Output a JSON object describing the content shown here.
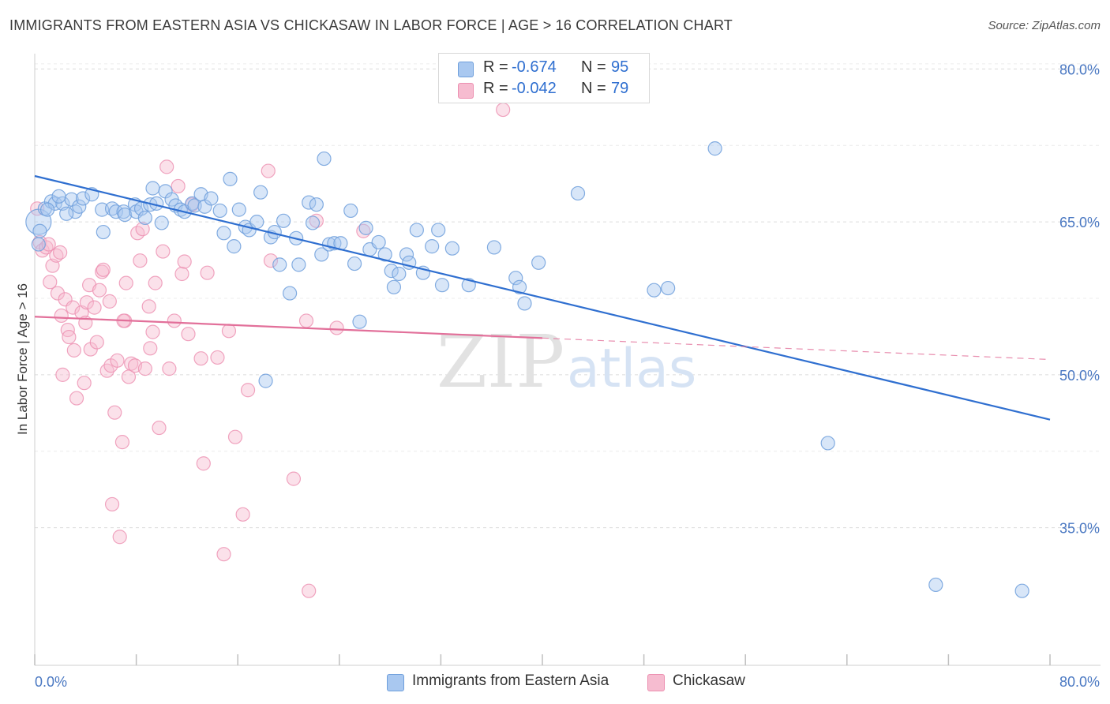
{
  "title": "IMMIGRANTS FROM EASTERN ASIA VS CHICKASAW IN LABOR FORCE | AGE > 16 CORRELATION CHART",
  "source": "Source: ZipAtlas.com",
  "watermark": {
    "zip": "ZIP",
    "atlas": "atlas"
  },
  "colors": {
    "blue_fill": "#a9c8f0",
    "blue_stroke": "#6f9fdc",
    "blue_line": "#2f6fd0",
    "pink_fill": "#f6bcd0",
    "pink_stroke": "#ec8fb0",
    "pink_line": "#e2709a",
    "grid": "#dcdcdc",
    "tick_text": "#4a78c2"
  },
  "legend_top": [
    {
      "r_label": "R =",
      "r_value": "-0.674",
      "n_label": "N =",
      "n_value": "95"
    },
    {
      "r_label": "R =",
      "r_value": "-0.042",
      "n_label": "N =",
      "n_value": "79"
    }
  ],
  "legend_bottom": [
    {
      "label": "Immigrants from Eastern Asia"
    },
    {
      "label": "Chickasaw"
    }
  ],
  "chart_data": {
    "type": "scatter",
    "ylabel": "In Labor Force | Age > 16",
    "xlim": [
      0,
      80
    ],
    "ylim": [
      21.5,
      81.5
    ],
    "x_tick_labels": [
      "0.0%",
      "80.0%"
    ],
    "y_ticks": [
      35,
      50,
      65,
      80
    ],
    "y_tick_labels": [
      "35.0%",
      "50.0%",
      "65.0%",
      "80.0%"
    ],
    "grid": true,
    "legend_position": "top-center",
    "series": [
      {
        "name": "Immigrants from Eastern Asia",
        "trend": {
          "x0": 0,
          "y0": 69.5,
          "x1": 80,
          "y1": 45.6
        },
        "points": [
          [
            0.3,
            65.0
          ],
          [
            0.3,
            62.8
          ],
          [
            0.8,
            66.3
          ],
          [
            1.3,
            67.0
          ],
          [
            1.6,
            66.8
          ],
          [
            2.2,
            66.8
          ],
          [
            2.9,
            67.2
          ],
          [
            3.2,
            66.0
          ],
          [
            3.5,
            66.5
          ],
          [
            3.8,
            67.3
          ],
          [
            4.5,
            67.7
          ],
          [
            5.3,
            66.2
          ],
          [
            5.4,
            64.0
          ],
          [
            6.1,
            66.3
          ],
          [
            6.4,
            66.0
          ],
          [
            7.0,
            66.0
          ],
          [
            7.1,
            65.7
          ],
          [
            7.9,
            66.7
          ],
          [
            8.0,
            66.0
          ],
          [
            8.4,
            66.3
          ],
          [
            8.7,
            65.4
          ],
          [
            9.1,
            66.7
          ],
          [
            9.3,
            68.3
          ],
          [
            9.6,
            66.8
          ],
          [
            10.0,
            64.9
          ],
          [
            10.3,
            68.0
          ],
          [
            10.8,
            67.2
          ],
          [
            11.1,
            66.6
          ],
          [
            11.5,
            66.2
          ],
          [
            11.8,
            66.0
          ],
          [
            12.4,
            66.8
          ],
          [
            12.6,
            66.6
          ],
          [
            13.1,
            67.7
          ],
          [
            13.4,
            66.5
          ],
          [
            13.9,
            67.3
          ],
          [
            14.6,
            66.1
          ],
          [
            14.9,
            63.9
          ],
          [
            15.4,
            69.2
          ],
          [
            15.7,
            62.6
          ],
          [
            16.1,
            66.2
          ],
          [
            16.6,
            64.5
          ],
          [
            16.9,
            64.2
          ],
          [
            17.5,
            65.0
          ],
          [
            17.8,
            67.9
          ],
          [
            18.6,
            63.5
          ],
          [
            18.9,
            64.0
          ],
          [
            19.3,
            60.8
          ],
          [
            19.6,
            65.1
          ],
          [
            20.1,
            58.0
          ],
          [
            20.6,
            63.4
          ],
          [
            20.8,
            60.8
          ],
          [
            21.6,
            66.9
          ],
          [
            21.9,
            64.9
          ],
          [
            22.2,
            66.7
          ],
          [
            22.6,
            61.8
          ],
          [
            22.8,
            71.2
          ],
          [
            23.2,
            62.8
          ],
          [
            23.6,
            62.9
          ],
          [
            24.1,
            62.9
          ],
          [
            24.9,
            66.1
          ],
          [
            25.2,
            60.9
          ],
          [
            25.6,
            55.2
          ],
          [
            26.1,
            64.4
          ],
          [
            26.4,
            62.3
          ],
          [
            27.1,
            63.0
          ],
          [
            27.6,
            61.8
          ],
          [
            28.1,
            60.2
          ],
          [
            28.3,
            58.6
          ],
          [
            28.7,
            59.9
          ],
          [
            29.3,
            61.8
          ],
          [
            29.5,
            61.0
          ],
          [
            30.1,
            64.2
          ],
          [
            30.6,
            60.0
          ],
          [
            31.3,
            62.6
          ],
          [
            31.8,
            64.2
          ],
          [
            32.1,
            58.8
          ],
          [
            32.9,
            62.4
          ],
          [
            34.2,
            58.8
          ],
          [
            36.2,
            62.5
          ],
          [
            37.9,
            59.5
          ],
          [
            38.2,
            58.6
          ],
          [
            38.6,
            57.0
          ],
          [
            39.7,
            61.0
          ],
          [
            42.8,
            67.8
          ],
          [
            48.8,
            58.3
          ],
          [
            49.9,
            58.5
          ],
          [
            53.6,
            72.2
          ],
          [
            18.2,
            49.4
          ],
          [
            62.5,
            43.3
          ],
          [
            71.0,
            29.4
          ],
          [
            77.8,
            28.8
          ],
          [
            0.4,
            64.1
          ],
          [
            1.0,
            66.2
          ],
          [
            2.5,
            65.8
          ],
          [
            1.9,
            67.5
          ]
        ]
      },
      {
        "name": "Chickasaw",
        "trend": {
          "x0": 0,
          "y0": 55.7,
          "x1": 40,
          "y1": 53.6,
          "x2": 80,
          "y2": 51.5
        },
        "points": [
          [
            0.2,
            66.3
          ],
          [
            0.4,
            63.0
          ],
          [
            0.6,
            62.2
          ],
          [
            0.9,
            62.5
          ],
          [
            1.1,
            62.8
          ],
          [
            1.2,
            59.1
          ],
          [
            1.4,
            60.7
          ],
          [
            1.7,
            61.7
          ],
          [
            1.8,
            58.0
          ],
          [
            2.1,
            55.8
          ],
          [
            2.2,
            50.0
          ],
          [
            2.4,
            57.4
          ],
          [
            2.6,
            54.4
          ],
          [
            2.7,
            53.7
          ],
          [
            3.0,
            56.6
          ],
          [
            3.1,
            52.4
          ],
          [
            3.3,
            47.7
          ],
          [
            3.7,
            56.1
          ],
          [
            3.9,
            49.2
          ],
          [
            4.1,
            57.1
          ],
          [
            4.3,
            58.8
          ],
          [
            4.4,
            52.5
          ],
          [
            4.7,
            56.6
          ],
          [
            4.9,
            53.2
          ],
          [
            5.1,
            58.3
          ],
          [
            5.3,
            60.1
          ],
          [
            5.4,
            60.3
          ],
          [
            5.7,
            50.4
          ],
          [
            5.9,
            57.2
          ],
          [
            6.0,
            50.9
          ],
          [
            6.1,
            37.3
          ],
          [
            6.3,
            46.3
          ],
          [
            6.5,
            51.4
          ],
          [
            6.7,
            34.1
          ],
          [
            6.9,
            43.4
          ],
          [
            7.1,
            55.3
          ],
          [
            7.2,
            59.0
          ],
          [
            7.4,
            49.8
          ],
          [
            7.6,
            51.1
          ],
          [
            7.9,
            50.9
          ],
          [
            8.1,
            63.9
          ],
          [
            8.3,
            61.2
          ],
          [
            8.5,
            64.3
          ],
          [
            8.7,
            50.6
          ],
          [
            9.0,
            56.7
          ],
          [
            9.1,
            52.6
          ],
          [
            9.3,
            54.2
          ],
          [
            9.5,
            59.0
          ],
          [
            9.8,
            44.8
          ],
          [
            10.1,
            62.1
          ],
          [
            10.4,
            70.4
          ],
          [
            10.6,
            50.6
          ],
          [
            11.0,
            55.3
          ],
          [
            11.3,
            68.5
          ],
          [
            11.6,
            59.9
          ],
          [
            11.8,
            61.1
          ],
          [
            12.1,
            54.0
          ],
          [
            12.4,
            66.7
          ],
          [
            13.1,
            51.6
          ],
          [
            13.3,
            41.3
          ],
          [
            13.6,
            60.0
          ],
          [
            14.4,
            51.7
          ],
          [
            14.9,
            32.4
          ],
          [
            15.3,
            54.3
          ],
          [
            15.8,
            43.9
          ],
          [
            16.4,
            36.3
          ],
          [
            16.8,
            48.5
          ],
          [
            18.4,
            70.0
          ],
          [
            18.6,
            61.2
          ],
          [
            20.4,
            39.8
          ],
          [
            21.4,
            55.3
          ],
          [
            21.6,
            28.8
          ],
          [
            22.2,
            65.1
          ],
          [
            23.8,
            54.6
          ],
          [
            25.9,
            64.1
          ],
          [
            36.9,
            76.0
          ],
          [
            4.0,
            55.1
          ],
          [
            2.0,
            62.0
          ],
          [
            7.0,
            55.3
          ]
        ]
      }
    ]
  }
}
